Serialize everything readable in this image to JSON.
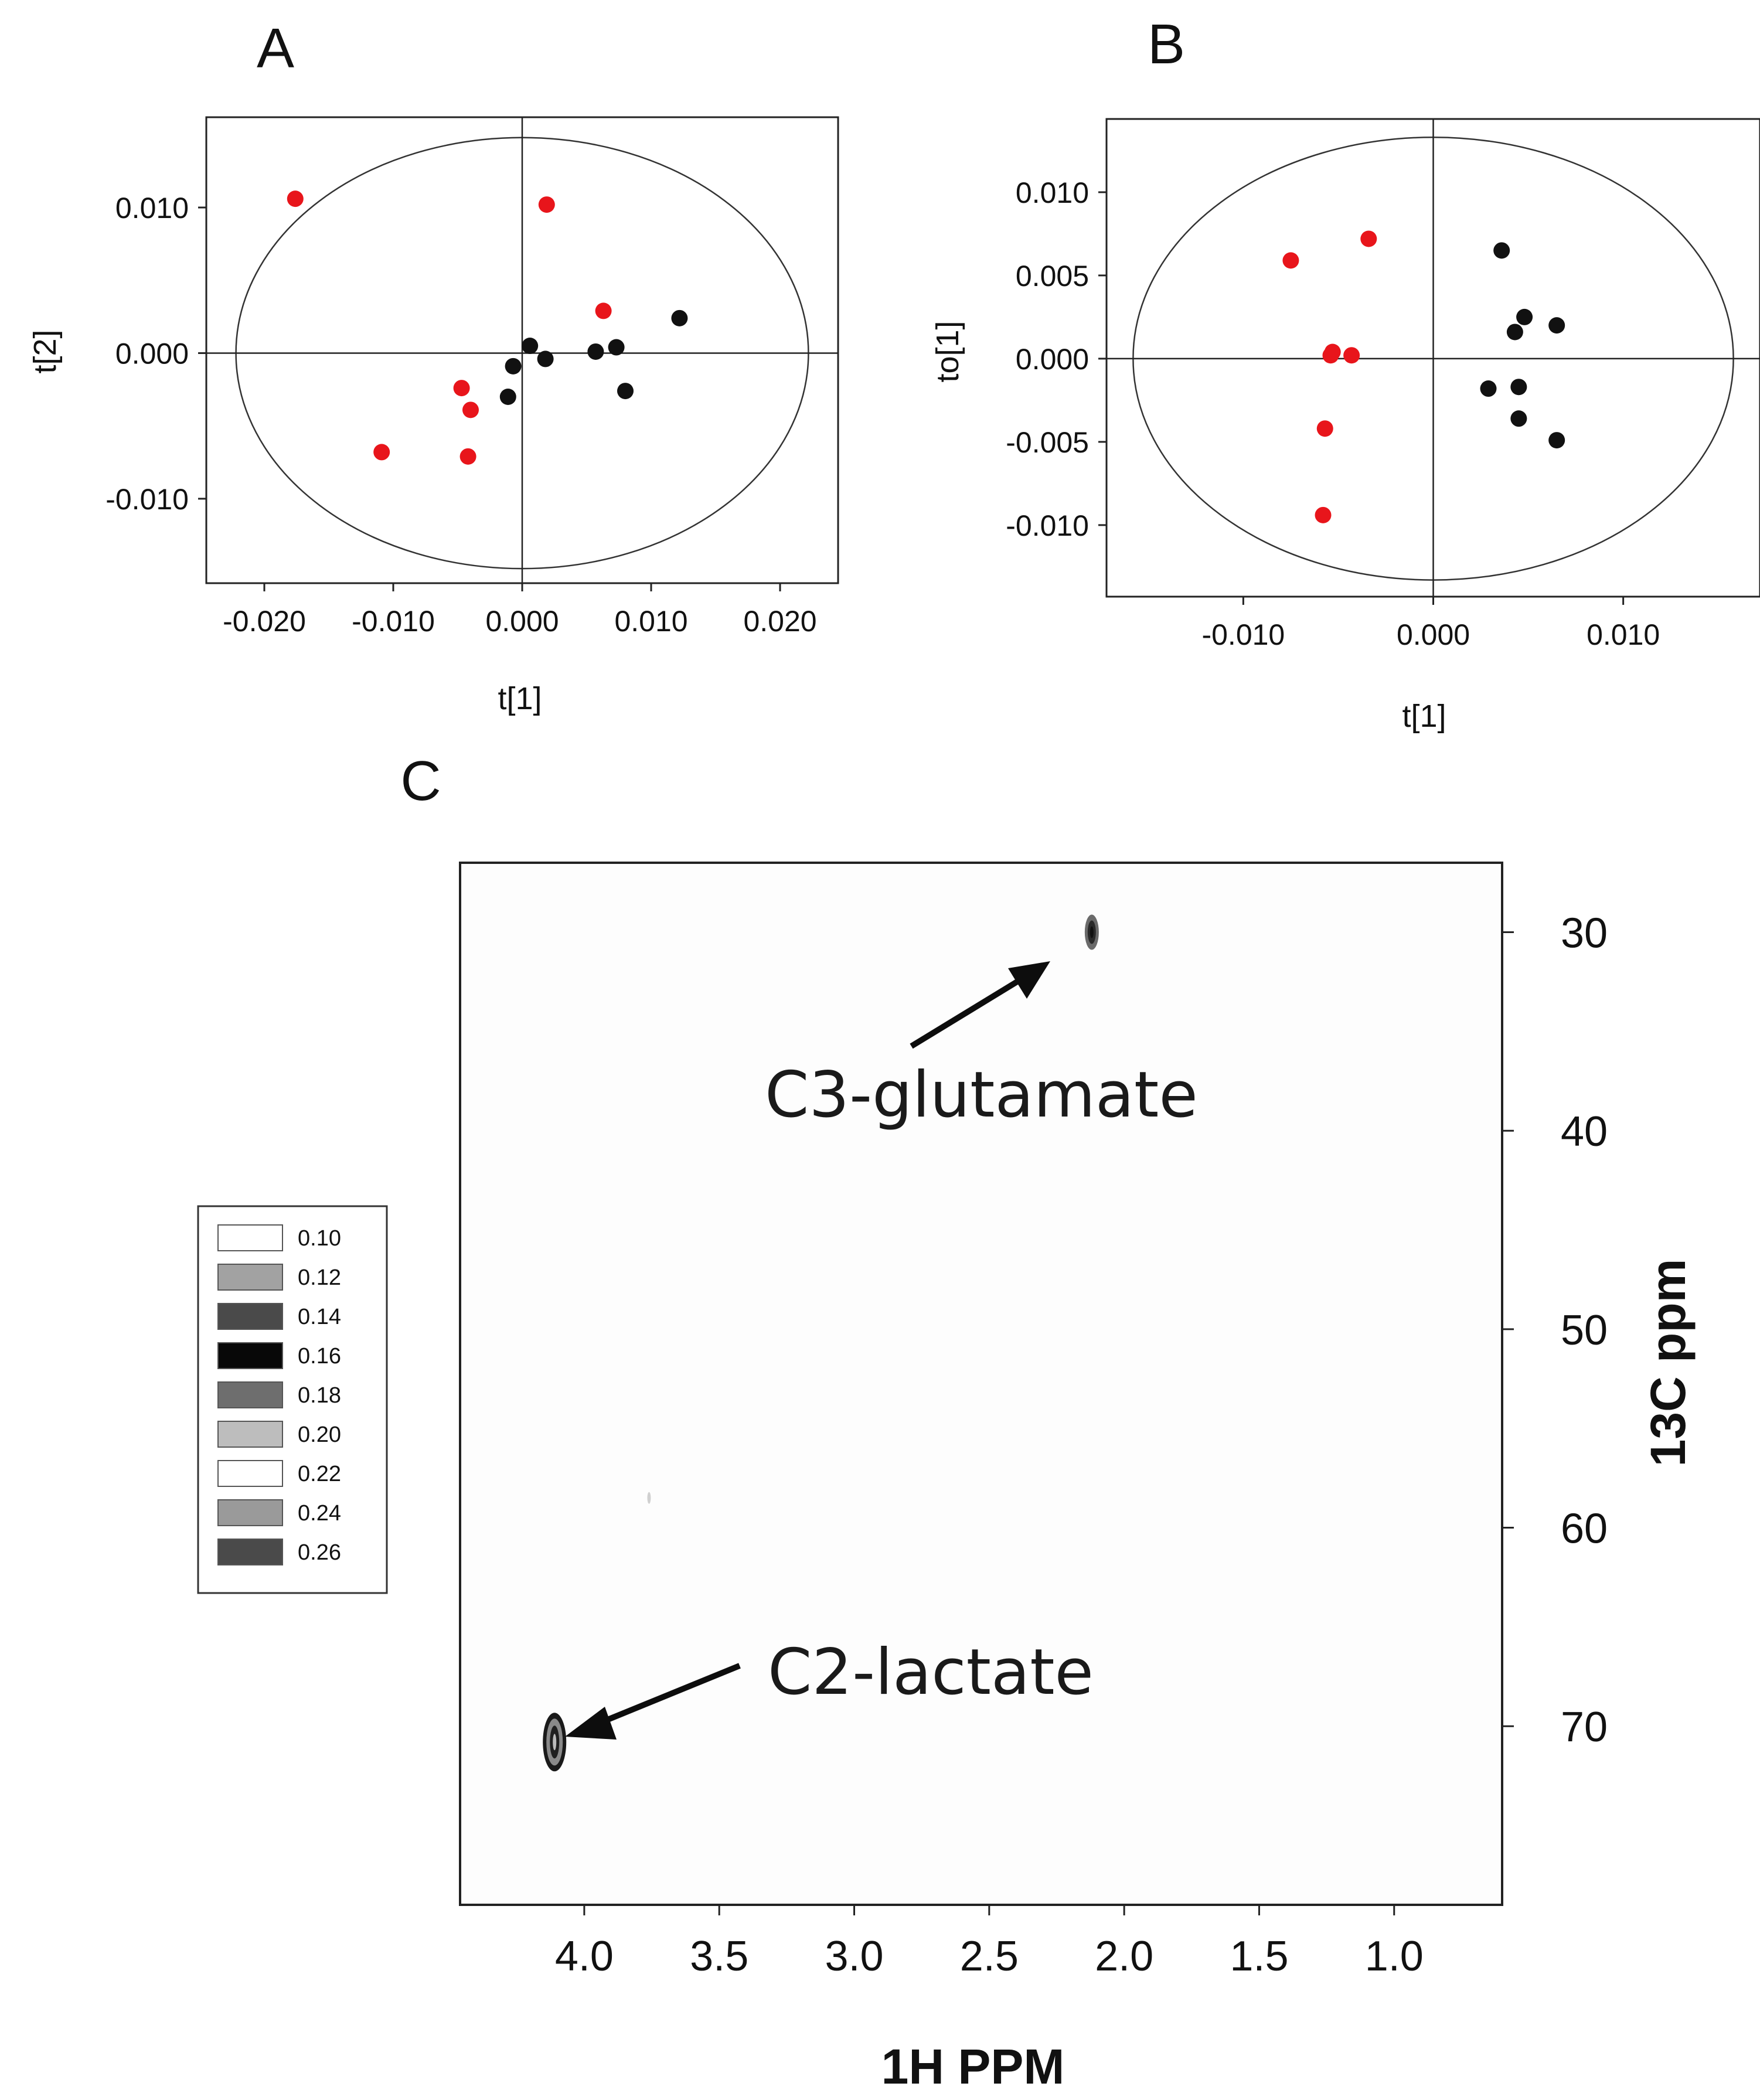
{
  "chart_data": [
    {
      "id": "A",
      "type": "scatter",
      "panel_label": "A",
      "xlabel": "t[1]",
      "ylabel": "t[2]",
      "xlim": [
        -0.0245,
        0.0245
      ],
      "ylim": [
        -0.0158,
        0.0162
      ],
      "x_ticks": [
        -0.02,
        -0.01,
        0.0,
        0.01,
        0.02
      ],
      "x_tick_labels": [
        "-0.020",
        "-0.010",
        "0.000",
        "0.010",
        "0.020"
      ],
      "y_ticks": [
        0.01,
        0.0,
        -0.01
      ],
      "y_tick_labels": [
        "0.010",
        "0.000",
        "-0.010"
      ],
      "ellipse": {
        "rx": 0.0222,
        "ry": 0.0148
      },
      "series": [
        {
          "name": "red",
          "color": "#e8151b",
          "points": [
            [
              -0.0176,
              0.0106
            ],
            [
              0.0019,
              0.0102
            ],
            [
              0.0063,
              0.0029
            ],
            [
              -0.0047,
              -0.0024
            ],
            [
              -0.004,
              -0.0039
            ],
            [
              -0.0109,
              -0.0068
            ],
            [
              -0.0042,
              -0.0071
            ]
          ]
        },
        {
          "name": "black",
          "color": "#111111",
          "points": [
            [
              0.0122,
              0.0024
            ],
            [
              0.0006,
              0.0005
            ],
            [
              -0.0007,
              -0.0009
            ],
            [
              0.0018,
              -0.0004
            ],
            [
              0.0057,
              0.0001
            ],
            [
              0.0073,
              0.0004
            ],
            [
              0.008,
              -0.0026
            ],
            [
              -0.0011,
              -0.003
            ]
          ]
        }
      ]
    },
    {
      "id": "B",
      "type": "scatter",
      "panel_label": "B",
      "xlabel": "t[1]",
      "ylabel": "to[1]",
      "xlim": [
        -0.0172,
        0.0172
      ],
      "ylim": [
        -0.0143,
        0.0144
      ],
      "x_ticks": [
        -0.01,
        0.0,
        0.01
      ],
      "x_tick_labels": [
        "-0.010",
        "0.000",
        "0.010"
      ],
      "y_ticks": [
        0.01,
        0.005,
        0.0,
        -0.005,
        -0.01
      ],
      "y_tick_labels": [
        "0.010",
        "0.005",
        "0.000",
        "-0.005",
        "-0.010"
      ],
      "ellipse": {
        "rx": 0.0158,
        "ry": 0.0133
      },
      "series": [
        {
          "name": "red",
          "color": "#e8151b",
          "points": [
            [
              -0.0075,
              0.0059
            ],
            [
              -0.0034,
              0.0072
            ],
            [
              -0.0053,
              0.0004
            ],
            [
              -0.0054,
              0.0002
            ],
            [
              -0.0043,
              0.0002
            ],
            [
              -0.0057,
              -0.0042
            ],
            [
              -0.0058,
              -0.0094
            ]
          ]
        },
        {
          "name": "black",
          "color": "#111111",
          "points": [
            [
              0.0036,
              0.0065
            ],
            [
              0.0048,
              0.0025
            ],
            [
              0.0043,
              0.0016
            ],
            [
              0.0065,
              0.002
            ],
            [
              0.0029,
              -0.0018
            ],
            [
              0.0045,
              -0.0017
            ],
            [
              0.0045,
              -0.0036
            ],
            [
              0.0065,
              -0.0049
            ]
          ]
        }
      ]
    },
    {
      "id": "C",
      "type": "heatmap",
      "panel_label": "C",
      "xlabel": "1H PPM",
      "ylabel": "13C ppm",
      "xlim": [
        4.46,
        0.6
      ],
      "ylim": [
        26.5,
        79.0
      ],
      "x_ticks": [
        4.0,
        3.5,
        3.0,
        2.5,
        2.0,
        1.5,
        1.0
      ],
      "x_tick_labels": [
        "4.0",
        "3.5",
        "3.0",
        "2.5",
        "2.0",
        "1.5",
        "1.0"
      ],
      "y_ticks": [
        30,
        40,
        50,
        60,
        70
      ],
      "y_tick_labels": [
        "30",
        "40",
        "50",
        "60",
        "70"
      ],
      "peaks": [
        {
          "label": "C3-glutamate",
          "x": 2.12,
          "y": 30.0
        },
        {
          "label": "C2-lactate",
          "x": 4.11,
          "y": 70.8
        },
        {
          "label": "",
          "x": 3.76,
          "y": 58.5
        }
      ],
      "legend": {
        "levels": [
          "0.10",
          "0.12",
          "0.14",
          "0.16",
          "0.18",
          "0.20",
          "0.22",
          "0.24",
          "0.26"
        ],
        "colors": [
          "#ffffff",
          "#a2a2a2",
          "#4a4a4a",
          "#080808",
          "#6e6e6e",
          "#bdbdbd",
          "#ffffff",
          "#9a9a9a",
          "#4a4a4a"
        ]
      }
    }
  ]
}
